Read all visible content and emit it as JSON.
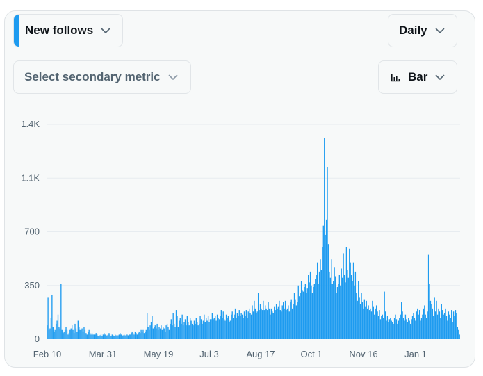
{
  "controls": {
    "primary_metric": "New follows",
    "secondary_metric_placeholder": "Select secondary metric",
    "interval": "Daily",
    "chart_type": "Bar"
  },
  "colors": {
    "accent": "#1d9bf0",
    "bar": "#1d9bf0",
    "grid": "#e7ecf0",
    "axis_text": "#536471"
  },
  "icons": {
    "chevron": "chevron-down-icon",
    "chart_type": "bar-chart-icon"
  },
  "chart_data": {
    "type": "bar",
    "title": "",
    "xlabel": "",
    "ylabel": "",
    "ylim": [
      0,
      1400
    ],
    "y_ticks": [
      {
        "value": 0,
        "label": "0"
      },
      {
        "value": 350,
        "label": "350"
      },
      {
        "value": 700,
        "label": "700"
      },
      {
        "value": 1050,
        "label": "1.1K"
      },
      {
        "value": 1400,
        "label": "1.4K"
      }
    ],
    "x_ticks": [
      "Feb 10",
      "Mar 31",
      "May 19",
      "Jul 3",
      "Aug 17",
      "Oct 1",
      "Nov 16",
      "Jan 1"
    ],
    "grid": true,
    "legend": "none",
    "keypoints": [
      [
        0,
        90
      ],
      [
        1,
        270
      ],
      [
        2,
        60
      ],
      [
        3,
        70
      ],
      [
        4,
        140
      ],
      [
        5,
        290
      ],
      [
        6,
        80
      ],
      [
        7,
        50
      ],
      [
        8,
        60
      ],
      [
        9,
        100
      ],
      [
        10,
        120
      ],
      [
        11,
        160
      ],
      [
        12,
        80
      ],
      [
        13,
        70
      ],
      [
        14,
        360
      ],
      [
        15,
        60
      ],
      [
        16,
        40
      ],
      [
        17,
        50
      ],
      [
        18,
        60
      ],
      [
        19,
        80
      ],
      [
        20,
        60
      ],
      [
        21,
        30
      ],
      [
        22,
        40
      ],
      [
        23,
        60
      ],
      [
        24,
        70
      ],
      [
        25,
        90
      ],
      [
        26,
        60
      ],
      [
        27,
        40
      ],
      [
        28,
        100
      ],
      [
        29,
        70
      ],
      [
        30,
        50
      ],
      [
        31,
        120
      ],
      [
        32,
        80
      ],
      [
        33,
        60
      ],
      [
        34,
        60
      ],
      [
        35,
        70
      ],
      [
        36,
        50
      ],
      [
        37,
        80
      ],
      [
        38,
        60
      ],
      [
        39,
        40
      ],
      [
        40,
        30
      ],
      [
        41,
        50
      ],
      [
        42,
        60
      ],
      [
        43,
        40
      ],
      [
        44,
        30
      ],
      [
        45,
        40
      ],
      [
        46,
        30
      ],
      [
        47,
        30
      ],
      [
        48,
        30
      ],
      [
        49,
        40
      ],
      [
        50,
        30
      ],
      [
        51,
        20
      ],
      [
        52,
        20
      ],
      [
        53,
        25
      ],
      [
        54,
        30
      ],
      [
        55,
        20
      ],
      [
        56,
        30
      ],
      [
        57,
        40
      ],
      [
        58,
        30
      ],
      [
        59,
        20
      ],
      [
        60,
        25
      ],
      [
        61,
        30
      ],
      [
        62,
        40
      ],
      [
        63,
        30
      ],
      [
        64,
        20
      ],
      [
        65,
        30
      ],
      [
        66,
        25
      ],
      [
        67,
        20
      ],
      [
        68,
        30
      ],
      [
        69,
        25
      ],
      [
        70,
        20
      ],
      [
        71,
        25
      ],
      [
        72,
        30
      ],
      [
        73,
        40
      ],
      [
        74,
        30
      ],
      [
        75,
        20
      ],
      [
        76,
        25
      ],
      [
        77,
        30
      ],
      [
        78,
        25
      ],
      [
        79,
        20
      ],
      [
        80,
        30
      ],
      [
        81,
        25
      ],
      [
        82,
        30
      ],
      [
        83,
        30
      ],
      [
        84,
        40
      ],
      [
        85,
        50
      ],
      [
        86,
        40
      ],
      [
        87,
        30
      ],
      [
        88,
        50
      ],
      [
        89,
        40
      ],
      [
        90,
        30
      ],
      [
        91,
        40
      ],
      [
        92,
        50
      ],
      [
        93,
        40
      ],
      [
        94,
        60
      ],
      [
        95,
        50
      ],
      [
        96,
        60
      ],
      [
        97,
        40
      ],
      [
        98,
        50
      ],
      [
        99,
        60
      ],
      [
        100,
        170
      ],
      [
        101,
        80
      ],
      [
        102,
        60
      ],
      [
        103,
        90
      ],
      [
        104,
        110
      ],
      [
        105,
        150
      ],
      [
        106,
        70
      ],
      [
        107,
        80
      ],
      [
        108,
        90
      ],
      [
        109,
        70
      ],
      [
        110,
        100
      ],
      [
        111,
        60
      ],
      [
        112,
        80
      ],
      [
        113,
        70
      ],
      [
        114,
        90
      ],
      [
        115,
        60
      ],
      [
        116,
        80
      ],
      [
        117,
        70
      ],
      [
        118,
        50
      ],
      [
        119,
        90
      ],
      [
        120,
        100
      ],
      [
        121,
        80
      ],
      [
        122,
        60
      ],
      [
        123,
        100
      ],
      [
        124,
        130
      ],
      [
        125,
        90
      ],
      [
        126,
        170
      ],
      [
        127,
        100
      ],
      [
        128,
        80
      ],
      [
        129,
        190
      ],
      [
        130,
        150
      ],
      [
        131,
        80
      ],
      [
        132,
        120
      ],
      [
        133,
        140
      ],
      [
        134,
        100
      ],
      [
        135,
        160
      ],
      [
        136,
        90
      ],
      [
        137,
        110
      ],
      [
        138,
        130
      ],
      [
        139,
        90
      ],
      [
        140,
        150
      ],
      [
        141,
        110
      ],
      [
        142,
        90
      ],
      [
        143,
        140
      ],
      [
        144,
        120
      ],
      [
        145,
        100
      ],
      [
        146,
        90
      ],
      [
        147,
        120
      ],
      [
        148,
        100
      ],
      [
        149,
        140
      ],
      [
        150,
        110
      ],
      [
        151,
        90
      ],
      [
        152,
        100
      ],
      [
        153,
        150
      ],
      [
        154,
        130
      ],
      [
        155,
        100
      ],
      [
        156,
        120
      ],
      [
        157,
        160
      ],
      [
        158,
        110
      ],
      [
        159,
        140
      ],
      [
        160,
        120
      ],
      [
        161,
        150
      ],
      [
        162,
        110
      ],
      [
        163,
        130
      ],
      [
        164,
        130
      ],
      [
        165,
        170
      ],
      [
        166,
        130
      ],
      [
        167,
        140
      ],
      [
        168,
        150
      ],
      [
        169,
        120
      ],
      [
        170,
        160
      ],
      [
        171,
        140
      ],
      [
        172,
        130
      ],
      [
        173,
        150
      ],
      [
        174,
        190
      ],
      [
        175,
        140
      ],
      [
        176,
        180
      ],
      [
        177,
        130
      ],
      [
        178,
        120
      ],
      [
        179,
        160
      ],
      [
        180,
        140
      ],
      [
        181,
        150
      ],
      [
        182,
        110
      ],
      [
        183,
        120
      ],
      [
        184,
        160
      ],
      [
        185,
        180
      ],
      [
        186,
        140
      ],
      [
        187,
        160
      ],
      [
        188,
        200
      ],
      [
        189,
        140
      ],
      [
        190,
        170
      ],
      [
        191,
        150
      ],
      [
        192,
        190
      ],
      [
        193,
        150
      ],
      [
        194,
        170
      ],
      [
        195,
        160
      ],
      [
        196,
        140
      ],
      [
        197,
        180
      ],
      [
        198,
        150
      ],
      [
        199,
        190
      ],
      [
        200,
        140
      ],
      [
        201,
        180
      ],
      [
        202,
        200
      ],
      [
        203,
        170
      ],
      [
        204,
        160
      ],
      [
        205,
        220
      ],
      [
        206,
        180
      ],
      [
        207,
        250
      ],
      [
        208,
        200
      ],
      [
        209,
        170
      ],
      [
        210,
        180
      ],
      [
        211,
        300
      ],
      [
        212,
        190
      ],
      [
        213,
        230
      ],
      [
        214,
        200
      ],
      [
        215,
        190
      ],
      [
        216,
        250
      ],
      [
        217,
        190
      ],
      [
        218,
        220
      ],
      [
        219,
        200
      ],
      [
        220,
        190
      ],
      [
        221,
        240
      ],
      [
        222,
        200
      ],
      [
        223,
        160
      ],
      [
        224,
        200
      ],
      [
        225,
        180
      ],
      [
        226,
        170
      ],
      [
        227,
        210
      ],
      [
        228,
        190
      ],
      [
        229,
        230
      ],
      [
        230,
        200
      ],
      [
        231,
        210
      ],
      [
        232,
        250
      ],
      [
        233,
        190
      ],
      [
        234,
        180
      ],
      [
        235,
        220
      ],
      [
        236,
        240
      ],
      [
        237,
        200
      ],
      [
        238,
        250
      ],
      [
        239,
        190
      ],
      [
        240,
        200
      ],
      [
        241,
        220
      ],
      [
        242,
        180
      ],
      [
        243,
        240
      ],
      [
        244,
        260
      ],
      [
        245,
        200
      ],
      [
        246,
        230
      ],
      [
        247,
        300
      ],
      [
        248,
        260
      ],
      [
        249,
        220
      ],
      [
        250,
        240
      ],
      [
        251,
        350
      ],
      [
        252,
        280
      ],
      [
        253,
        300
      ],
      [
        254,
        380
      ],
      [
        255,
        320
      ],
      [
        256,
        310
      ],
      [
        257,
        340
      ],
      [
        258,
        360
      ],
      [
        259,
        300
      ],
      [
        260,
        330
      ],
      [
        261,
        420
      ],
      [
        262,
        370
      ],
      [
        263,
        440
      ],
      [
        264,
        350
      ],
      [
        265,
        300
      ],
      [
        266,
        340
      ],
      [
        267,
        360
      ],
      [
        268,
        390
      ],
      [
        269,
        420
      ],
      [
        270,
        500
      ],
      [
        271,
        360
      ],
      [
        272,
        440
      ],
      [
        273,
        520
      ],
      [
        274,
        450
      ],
      [
        275,
        600
      ],
      [
        276,
        740
      ],
      [
        277,
        1310
      ],
      [
        278,
        680
      ],
      [
        279,
        780
      ],
      [
        280,
        1120
      ],
      [
        281,
        620
      ],
      [
        282,
        440
      ],
      [
        283,
        400
      ],
      [
        284,
        520
      ],
      [
        285,
        360
      ],
      [
        286,
        380
      ],
      [
        287,
        470
      ],
      [
        288,
        410
      ],
      [
        289,
        300
      ],
      [
        290,
        340
      ],
      [
        291,
        360
      ],
      [
        292,
        420
      ],
      [
        293,
        350
      ],
      [
        294,
        460
      ],
      [
        295,
        400
      ],
      [
        296,
        560
      ],
      [
        297,
        420
      ],
      [
        298,
        370
      ],
      [
        299,
        600
      ],
      [
        300,
        450
      ],
      [
        301,
        400
      ],
      [
        302,
        590
      ],
      [
        303,
        500
      ],
      [
        304,
        420
      ],
      [
        305,
        380
      ],
      [
        306,
        500
      ],
      [
        307,
        350
      ],
      [
        308,
        440
      ],
      [
        309,
        300
      ],
      [
        310,
        250
      ],
      [
        311,
        380
      ],
      [
        312,
        270
      ],
      [
        313,
        230
      ],
      [
        314,
        300
      ],
      [
        315,
        240
      ],
      [
        316,
        200
      ],
      [
        317,
        260
      ],
      [
        318,
        210
      ],
      [
        319,
        250
      ],
      [
        320,
        200
      ],
      [
        321,
        220
      ],
      [
        322,
        190
      ],
      [
        323,
        200
      ],
      [
        324,
        180
      ],
      [
        325,
        250
      ],
      [
        326,
        210
      ],
      [
        327,
        160
      ],
      [
        328,
        200
      ],
      [
        329,
        220
      ],
      [
        330,
        180
      ],
      [
        331,
        150
      ],
      [
        332,
        190
      ],
      [
        333,
        130
      ],
      [
        334,
        150
      ],
      [
        335,
        160
      ],
      [
        336,
        140
      ],
      [
        337,
        310
      ],
      [
        338,
        180
      ],
      [
        339,
        120
      ],
      [
        340,
        150
      ],
      [
        341,
        110
      ],
      [
        342,
        130
      ],
      [
        343,
        140
      ],
      [
        344,
        120
      ],
      [
        345,
        110
      ],
      [
        346,
        100
      ],
      [
        347,
        140
      ],
      [
        348,
        160
      ],
      [
        349,
        130
      ],
      [
        350,
        100
      ],
      [
        351,
        120
      ],
      [
        352,
        140
      ],
      [
        353,
        160
      ],
      [
        354,
        240
      ],
      [
        355,
        180
      ],
      [
        356,
        140
      ],
      [
        357,
        120
      ],
      [
        358,
        160
      ],
      [
        359,
        130
      ],
      [
        360,
        110
      ],
      [
        361,
        140
      ],
      [
        362,
        120
      ],
      [
        363,
        100
      ],
      [
        364,
        130
      ],
      [
        365,
        150
      ],
      [
        366,
        170
      ],
      [
        367,
        140
      ],
      [
        368,
        120
      ],
      [
        369,
        180
      ],
      [
        370,
        200
      ],
      [
        371,
        160
      ],
      [
        372,
        190
      ],
      [
        373,
        120
      ],
      [
        374,
        140
      ],
      [
        375,
        160
      ],
      [
        376,
        200
      ],
      [
        377,
        220
      ],
      [
        378,
        160
      ],
      [
        379,
        140
      ],
      [
        380,
        180
      ],
      [
        381,
        550
      ],
      [
        382,
        360
      ],
      [
        383,
        250
      ],
      [
        384,
        230
      ],
      [
        385,
        200
      ],
      [
        386,
        150
      ],
      [
        387,
        270
      ],
      [
        388,
        180
      ],
      [
        389,
        250
      ],
      [
        390,
        160
      ],
      [
        391,
        200
      ],
      [
        392,
        180
      ],
      [
        393,
        140
      ],
      [
        394,
        230
      ],
      [
        395,
        190
      ],
      [
        396,
        160
      ],
      [
        397,
        170
      ],
      [
        398,
        200
      ],
      [
        399,
        150
      ],
      [
        400,
        120
      ],
      [
        401,
        180
      ],
      [
        402,
        160
      ],
      [
        403,
        140
      ],
      [
        404,
        190
      ],
      [
        405,
        110
      ],
      [
        406,
        180
      ],
      [
        407,
        150
      ],
      [
        408,
        190
      ],
      [
        409,
        170
      ],
      [
        410,
        80
      ],
      [
        411,
        60
      ],
      [
        412,
        30
      ]
    ]
  }
}
